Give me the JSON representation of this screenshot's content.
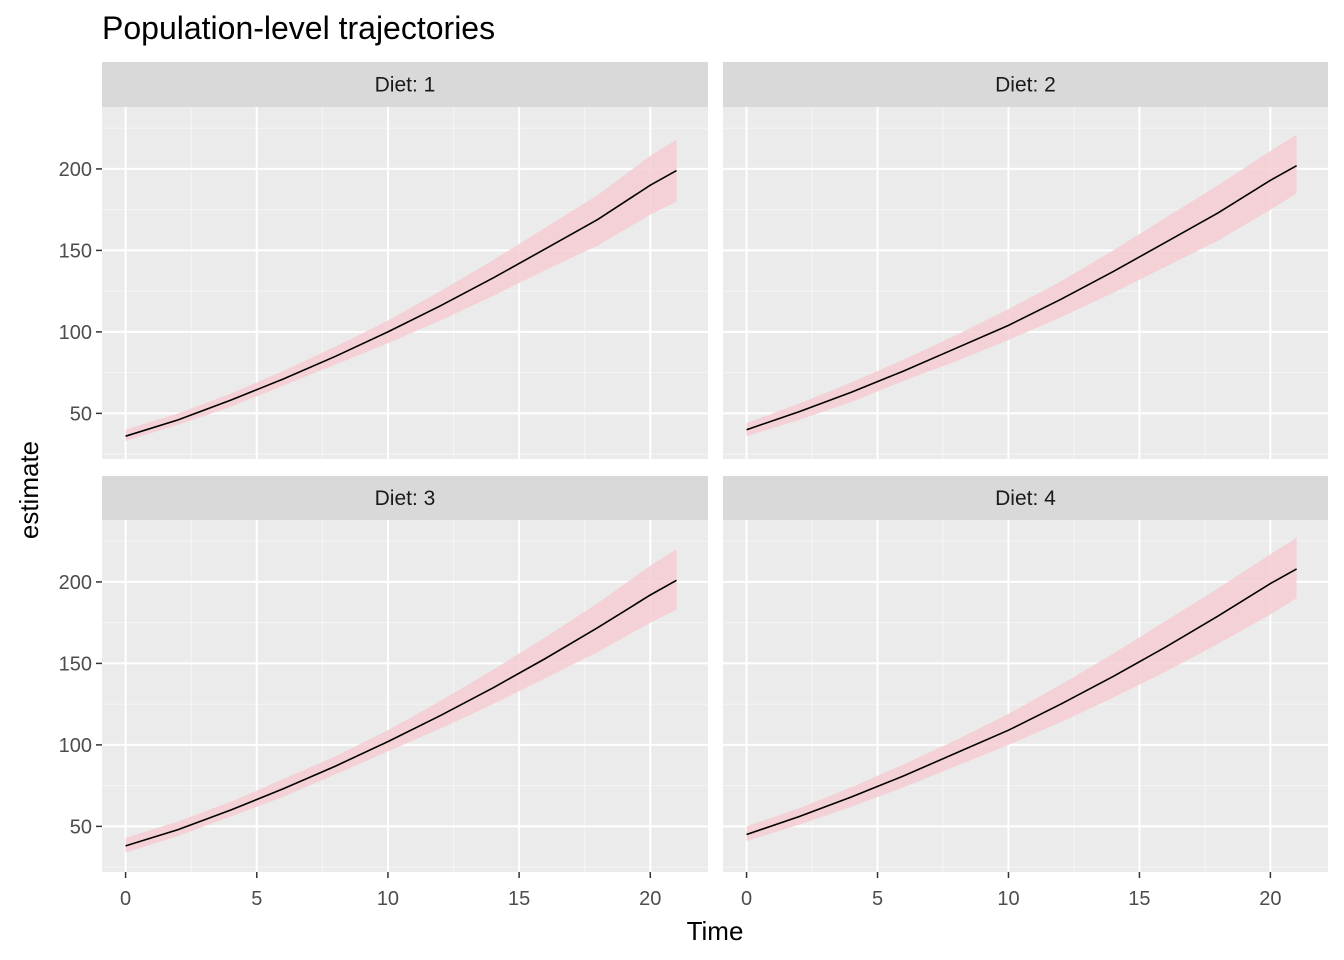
{
  "title": "Population-level trajectories",
  "chart_data": {
    "type": "line",
    "title": "Population-level trajectories",
    "xlabel": "Time",
    "ylabel": "estimate",
    "xlim": [
      -0.9,
      22.2
    ],
    "ylim": [
      22,
      238
    ],
    "x_ticks": [
      0,
      5,
      10,
      15,
      20
    ],
    "y_ticks": [
      50,
      100,
      150,
      200
    ],
    "grid": true,
    "ribbon_color": "#f4cdd2",
    "line_color": "#000000",
    "panel_background": "#ebebeb",
    "strip_background": "#d9d9d9",
    "x": [
      0,
      2,
      4,
      6,
      8,
      10,
      12,
      14,
      16,
      18,
      20,
      21
    ],
    "panels": [
      {
        "label": "Diet: 1",
        "series": [
          {
            "estimate": [
              36,
              46,
              58,
              71,
              85,
              100,
              116,
              133,
              151,
              169,
              190,
              199
            ],
            "lower": [
              33,
              43,
              54,
              67,
              80,
              93,
              107,
              122,
              138,
              153,
              172,
              180
            ],
            "upper": [
              40,
              50,
              62,
              76,
              91,
              107,
              125,
              144,
              164,
              184,
              208,
              218
            ]
          }
        ]
      },
      {
        "label": "Diet: 2",
        "series": [
          {
            "estimate": [
              40,
              51,
              63,
              76,
              90,
              104,
              120,
              137,
              155,
              173,
              193,
              202
            ],
            "lower": [
              36,
              46,
              57,
              70,
              82,
              95,
              109,
              124,
              140,
              156,
              175,
              185
            ],
            "upper": [
              44,
              56,
              69,
              83,
              98,
              114,
              131,
              150,
              170,
              190,
              211,
              221
            ]
          }
        ]
      },
      {
        "label": "Diet: 3",
        "series": [
          {
            "estimate": [
              38,
              48,
              60,
              73,
              87,
              102,
              118,
              135,
              153,
              172,
              192,
              201
            ],
            "lower": [
              34,
              44,
              56,
              68,
              82,
              96,
              110,
              125,
              141,
              157,
              175,
              183
            ],
            "upper": [
              43,
              53,
              65,
              79,
              93,
              109,
              127,
              146,
              166,
              187,
              210,
              220
            ]
          }
        ]
      },
      {
        "label": "Diet: 4",
        "series": [
          {
            "estimate": [
              45,
              56,
              68,
              81,
              95,
              109,
              125,
              142,
              160,
              179,
              199,
              208
            ],
            "lower": [
              41,
              51,
              62,
              74,
              87,
              100,
              114,
              129,
              145,
              162,
              180,
              190
            ],
            "upper": [
              50,
              61,
              74,
              88,
              103,
              119,
              137,
              156,
              176,
              196,
              217,
              227
            ]
          }
        ]
      }
    ]
  }
}
